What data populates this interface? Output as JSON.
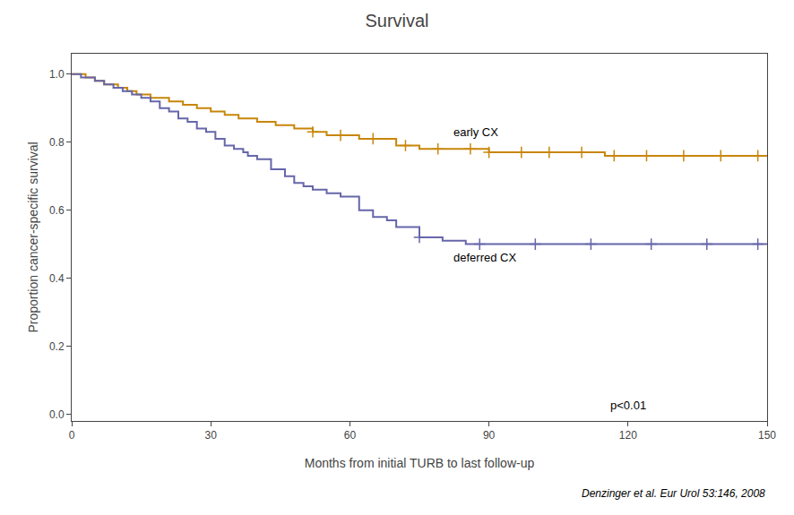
{
  "chart_data": {
    "type": "step",
    "title": "Survival",
    "xlabel": "Months from initial TURB to last follow-up",
    "ylabel": "Proportion cancer-specific survival",
    "footnote": "Denzinger et al. Eur Urol 53:146, 2008",
    "xlim": [
      0,
      150
    ],
    "ylim": [
      -0.02,
      1.06
    ],
    "xticks": [
      0,
      30,
      60,
      90,
      120,
      150
    ],
    "yticks": [
      {
        "value": 0.0,
        "label": "0.0"
      },
      0.2,
      0.4,
      0.6,
      0.8,
      {
        "value": 1.0,
        "label": "1.0"
      }
    ],
    "grid": false,
    "series": [
      {
        "name": "early CX",
        "color": "#c8860a",
        "label_x": 82,
        "label_y": 0.83,
        "x": [
          0,
          1,
          2,
          3,
          4,
          5,
          6,
          7,
          8,
          9,
          10,
          11,
          12,
          13,
          14,
          15,
          17,
          19,
          21,
          24,
          27,
          30,
          33,
          36,
          40,
          44,
          48,
          52,
          55,
          58,
          62,
          65,
          70,
          75,
          80,
          85,
          90,
          95,
          100,
          105,
          110,
          115,
          120,
          125,
          130,
          135,
          140,
          145,
          150
        ],
        "values": [
          1.0,
          1.0,
          1.0,
          0.99,
          0.99,
          0.98,
          0.98,
          0.97,
          0.97,
          0.97,
          0.96,
          0.96,
          0.95,
          0.95,
          0.94,
          0.94,
          0.93,
          0.93,
          0.92,
          0.91,
          0.9,
          0.89,
          0.88,
          0.87,
          0.86,
          0.85,
          0.84,
          0.83,
          0.82,
          0.82,
          0.81,
          0.81,
          0.79,
          0.78,
          0.78,
          0.78,
          0.77,
          0.77,
          0.77,
          0.77,
          0.77,
          0.76,
          0.76,
          0.76,
          0.76,
          0.76,
          0.76,
          0.76,
          0.76
        ],
        "censors": {
          "marker": "plus",
          "x": [
            52,
            58,
            65,
            72,
            79,
            86,
            90,
            97,
            103,
            110,
            117,
            124,
            132,
            140,
            148
          ],
          "values": [
            0.83,
            0.82,
            0.81,
            0.79,
            0.78,
            0.78,
            0.77,
            0.77,
            0.77,
            0.77,
            0.76,
            0.76,
            0.76,
            0.76,
            0.76
          ]
        }
      },
      {
        "name": "deferred CX",
        "color": "#6666aa",
        "label_x": 82,
        "label_y": 0.46,
        "x": [
          0,
          2,
          4,
          5,
          7,
          9,
          11,
          13,
          15,
          17,
          19,
          21,
          23,
          25,
          27,
          29,
          31,
          33,
          35,
          37,
          38,
          40,
          43,
          46,
          48,
          50,
          52,
          55,
          58,
          62,
          65,
          68,
          70,
          75,
          80,
          85,
          90,
          95,
          100,
          105,
          110,
          115,
          120,
          125,
          130,
          135,
          140,
          145,
          150
        ],
        "values": [
          1.0,
          0.99,
          0.99,
          0.98,
          0.97,
          0.96,
          0.95,
          0.94,
          0.93,
          0.92,
          0.9,
          0.89,
          0.87,
          0.86,
          0.84,
          0.83,
          0.81,
          0.79,
          0.78,
          0.77,
          0.76,
          0.75,
          0.72,
          0.7,
          0.68,
          0.67,
          0.66,
          0.65,
          0.64,
          0.6,
          0.58,
          0.57,
          0.55,
          0.52,
          0.51,
          0.5,
          0.5,
          0.5,
          0.5,
          0.5,
          0.5,
          0.5,
          0.5,
          0.5,
          0.5,
          0.5,
          0.5,
          0.5,
          0.5
        ],
        "censors": {
          "marker": "plus",
          "x": [
            75,
            88,
            100,
            112,
            125,
            137,
            148
          ],
          "values": [
            0.52,
            0.5,
            0.5,
            0.5,
            0.5,
            0.5,
            0.5
          ]
        }
      }
    ],
    "annotations": [
      {
        "text": "p<0.01",
        "x": 120,
        "y": 0.025
      }
    ]
  }
}
